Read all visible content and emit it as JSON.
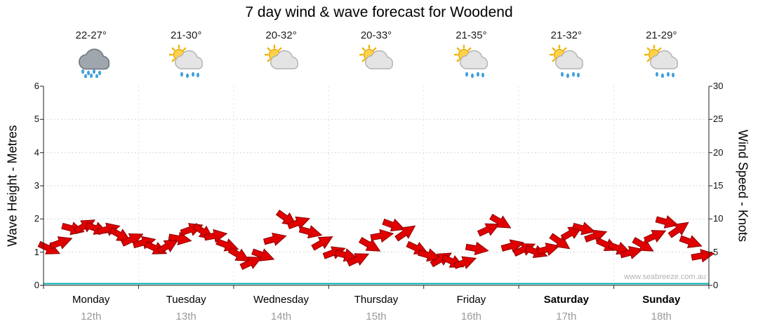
{
  "page": {
    "title": "7 day wind & wave forecast for Woodend",
    "watermark": "www.seabreeze.com.au"
  },
  "axes": {
    "left_label": "Wave Height - Metres",
    "right_label": "Wind Speed - Knots",
    "left_ticks": [
      0,
      1,
      2,
      3,
      4,
      5,
      6
    ],
    "right_ticks": [
      0,
      5,
      10,
      15,
      20,
      25,
      30
    ]
  },
  "chart_data": {
    "type": "line",
    "title": "7 day wind & wave forecast for Woodend",
    "ylabel_left": "Wave Height - Metres",
    "ylabel_right": "Wind Speed - Knots",
    "ylim_left_metres": [
      0,
      6
    ],
    "ylim_right_knots": [
      0,
      30
    ],
    "grid": "faint dotted horizontal gridlines at each metre, faint dotted vertical lines at day boundaries",
    "legend": "none",
    "daily": [
      {
        "day": "Monday",
        "date": "12th",
        "temp_range": "22-27°",
        "weather": "rain",
        "weekend": false
      },
      {
        "day": "Tuesday",
        "date": "13th",
        "temp_range": "21-30°",
        "weather": "sun-cloud-rain",
        "weekend": false
      },
      {
        "day": "Wednesday",
        "date": "14th",
        "temp_range": "20-32°",
        "weather": "sun-cloud",
        "weekend": false
      },
      {
        "day": "Thursday",
        "date": "15th",
        "temp_range": "20-33°",
        "weather": "sun-cloud",
        "weekend": false
      },
      {
        "day": "Friday",
        "date": "16th",
        "temp_range": "21-35°",
        "weather": "sun-cloud-rain",
        "weekend": false
      },
      {
        "day": "Saturday",
        "date": "17th",
        "temp_range": "21-32°",
        "weather": "sun-cloud-rain",
        "weekend": true
      },
      {
        "day": "Sunday",
        "date": "18th",
        "temp_range": "21-29°",
        "weather": "sun-cloud-rain",
        "weekend": true
      }
    ],
    "series": [
      {
        "name": "Wind Speed",
        "units": "knots",
        "color": "#e00000",
        "style": "wind-arrows",
        "samples_per_day": 8,
        "values_knots": [
          5.5,
          6.5,
          8.5,
          9.0,
          8.5,
          8.5,
          7.5,
          7.0,
          6.5,
          5.5,
          6.0,
          7.0,
          8.5,
          8.0,
          7.5,
          6.0,
          4.5,
          3.5,
          4.5,
          7.0,
          10.0,
          9.5,
          8.0,
          6.5,
          5.0,
          4.5,
          4.0,
          6.0,
          7.5,
          9.0,
          8.0,
          5.5,
          4.5,
          4.0,
          3.5,
          3.5,
          5.5,
          8.5,
          9.5,
          6.0,
          5.5,
          5.0,
          5.5,
          6.5,
          8.0,
          8.5,
          7.5,
          6.0,
          5.5,
          5.0,
          6.0,
          7.5,
          9.5,
          8.5,
          6.5,
          4.5
        ]
      },
      {
        "name": "Wave Height",
        "units": "metres",
        "color": "#00b2b2",
        "style": "flat-line",
        "constant_value_m": 0.05
      }
    ],
    "wind_directions_deg": [
      25,
      -20,
      15,
      -30,
      20,
      -15,
      30,
      -25,
      -15,
      25,
      -30,
      10,
      -20,
      35,
      -10,
      20,
      30,
      -25,
      20,
      -15,
      35,
      -20,
      15,
      -30,
      -20,
      15,
      -25,
      30,
      -10,
      20,
      -35,
      25,
      15,
      -30,
      25,
      -20,
      10,
      -25,
      30,
      -15,
      -25,
      20,
      -15,
      35,
      -30,
      15,
      -20,
      25,
      20,
      -15,
      30,
      -25,
      15,
      -35,
      20,
      -10
    ],
    "daily_wind_range_knots": [
      [
        5.5,
        9
      ],
      [
        5.5,
        8.5
      ],
      [
        3.5,
        10
      ],
      [
        4,
        9
      ],
      [
        3.5,
        9.5
      ],
      [
        5,
        8.5
      ],
      [
        4.5,
        9.5
      ]
    ]
  }
}
